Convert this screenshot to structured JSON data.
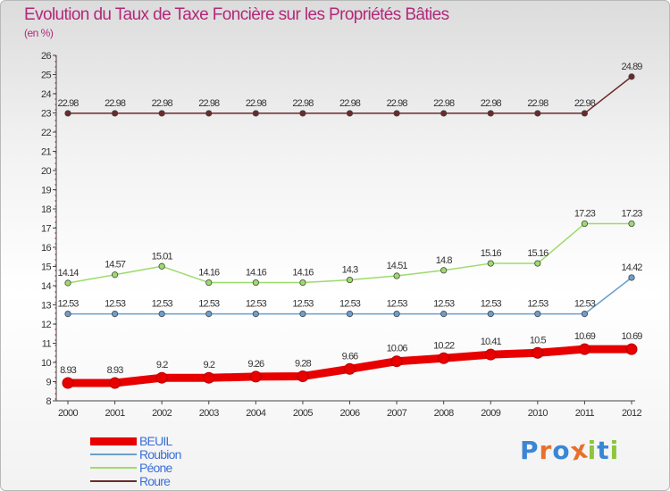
{
  "header": {
    "title": "Evolution du Taux de Taxe Foncière sur les Propriétés Bâties",
    "unit": "(en %)"
  },
  "logo": {
    "text": "Proxiti",
    "letter_colors": [
      "#3a86d4",
      "#e9702a",
      "#3a86d4",
      "#e9702a",
      "#8cc63f",
      "#3a86d4",
      "#8cc63f"
    ]
  },
  "chart_data": {
    "type": "line",
    "title": "Evolution du Taux de Taxe Foncière sur les Propriétés Bâties",
    "ylabel": "(en %)",
    "xlabel": "",
    "categories": [
      "2000",
      "2001",
      "2002",
      "2003",
      "2004",
      "2005",
      "2006",
      "2007",
      "2008",
      "2009",
      "2010",
      "2011",
      "2012"
    ],
    "ylim": [
      8,
      26
    ],
    "yticks": [
      "8",
      "9",
      "10",
      "11",
      "12",
      "13",
      "14",
      "15",
      "16",
      "17",
      "18",
      "19",
      "20",
      "21",
      "22",
      "23",
      "24",
      "25",
      "26"
    ],
    "grid": false,
    "legend_position": "bottom-left",
    "series": [
      {
        "name": "BEUIL",
        "color": "#e80000",
        "values": [
          8.93,
          8.93,
          9.2,
          9.2,
          9.26,
          9.28,
          9.66,
          10.06,
          10.22,
          10.41,
          10.5,
          10.69,
          10.69
        ],
        "labels": [
          "8.93",
          "8.93",
          "9.2",
          "9.2",
          "9.26",
          "9.28",
          "9.66",
          "10.06",
          "10.22",
          "10.41",
          "10.5",
          "10.69",
          "10.69"
        ]
      },
      {
        "name": "Roubion",
        "color": "#6a9fcd",
        "values": [
          12.53,
          12.53,
          12.53,
          12.53,
          12.53,
          12.53,
          12.53,
          12.53,
          12.53,
          12.53,
          12.53,
          12.53,
          14.42
        ],
        "labels": [
          "12.53",
          "12.53",
          "12.53",
          "12.53",
          "12.53",
          "12.53",
          "12.53",
          "12.53",
          "12.53",
          "12.53",
          "12.53",
          "12.53",
          "14.42"
        ]
      },
      {
        "name": "Péone",
        "color": "#9ddb6b",
        "values": [
          14.14,
          14.57,
          15.01,
          14.16,
          14.16,
          14.16,
          14.3,
          14.51,
          14.8,
          15.16,
          15.16,
          17.23,
          17.23
        ],
        "labels": [
          "14.14",
          "14.57",
          "15.01",
          "14.16",
          "14.16",
          "14.16",
          "14.3",
          "14.51",
          "14.8",
          "15.16",
          "15.16",
          "17.23",
          "17.23"
        ]
      },
      {
        "name": "Roure",
        "color": "#6b2a2a",
        "values": [
          22.98,
          22.98,
          22.98,
          22.98,
          22.98,
          22.98,
          22.98,
          22.98,
          22.98,
          22.98,
          22.98,
          22.98,
          24.89
        ],
        "labels": [
          "22.98",
          "22.98",
          "22.98",
          "22.98",
          "22.98",
          "22.98",
          "22.98",
          "22.98",
          "22.98",
          "22.98",
          "22.98",
          "22.98",
          "24.89"
        ]
      }
    ]
  }
}
